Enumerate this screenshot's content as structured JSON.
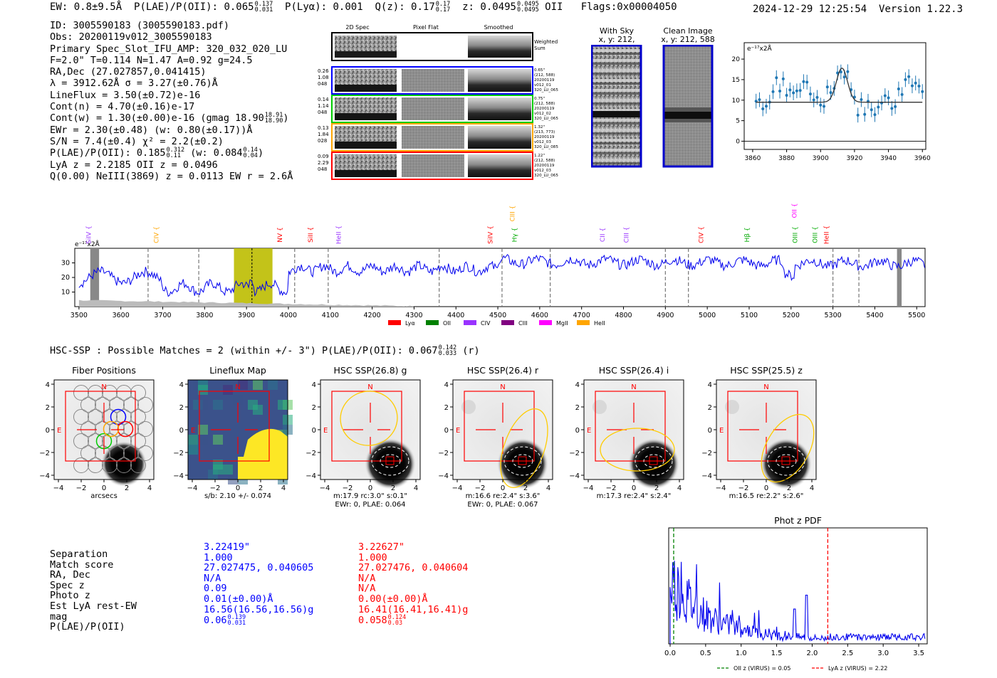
{
  "header": {
    "ew": "EW: 0.8±9.5Å",
    "plae_label": "P(LAE)/P(OII): 0.065",
    "plae_hi": "0.137",
    "plae_lo": "0.031",
    "plya": "P(Lyα): 0.001",
    "qz_label": "Q(z): 0.17",
    "qz_hi": "0.17",
    "qz_lo": "0.17",
    "z_label": "z: 0.0495",
    "z_hi": "0.0495",
    "z_lo": "0.0495",
    "z_line": "OII",
    "flags": "Flags:0x00004050",
    "timestamp": "2024-12-29 12:25:54",
    "version": "Version 1.22.3"
  },
  "info": {
    "id": "ID: 3005590183 (3005590183.pdf)",
    "obs": "Obs: 20200119v012_3005590183",
    "primary": "Primary Spec_Slot_IFU_AMP: 320_032_020_LU",
    "params": "F=2.0\"  T=0.114  N=1.47  A=0.92  g=24.5",
    "radec": "RA,Dec (27.027857,0.041415)",
    "lambda": "λ = 3912.62Å  σ = 3.27(±0.76)Å",
    "lineflux": "LineFlux = 3.50(±0.72)e-16",
    "contn": "Cont(n) = 4.70(±0.16)e-17",
    "contw": "Cont(w) = 1.30(±0.00)e-16 (gmag 18.90",
    "contw_hi": "18.91",
    "contw_lo": "18.90",
    "ewr": "EWr = 2.30(±0.48) (w: 0.80(±0.17))Å",
    "sn": "S/N = 7.4(±0.4)  χ² = 2.2(±0.2)",
    "plae": "P(LAE)/P(OII): 0.185",
    "plae_hi": "0.312",
    "plae_lo": "0.11",
    "plae_w": "(w: 0.084",
    "plae_w_hi": "0.14",
    "plae_w_lo": "0.04",
    "lya": "LyA z = 2.2185  OII z = 0.0496",
    "q": "Q(0.00) NeIII(3869) z = 0.0113  EW r = 2.6Å"
  },
  "cutouts": {
    "col_2d": "2D Spec",
    "col_flat": "Pixel Flat",
    "col_smooth": "Smoothed",
    "weighted": "Weighted Sum",
    "rows": [
      {
        "left": [
          "0.26",
          "1.08",
          "048"
        ],
        "right": [
          "0.65\"",
          "(212, 588)",
          "20200119",
          "v012_01",
          "320_LU_065"
        ],
        "color": "#0000ff"
      },
      {
        "left": [
          "0.14",
          "1.14",
          "048"
        ],
        "right": [
          "0.75\"",
          "(212, 588)",
          "20200119",
          "v012_02",
          "320_LU_065"
        ],
        "color": "#00cc00"
      },
      {
        "left": [
          "0.13",
          "1.84",
          "028"
        ],
        "right": [
          "1.32\"",
          "(213, 773)",
          "20200119",
          "v012_03",
          "320_LU_085"
        ],
        "color": "#ffa500"
      },
      {
        "left": [
          "0.09",
          "2.29",
          "048"
        ],
        "right": [
          "1.22\"",
          "(212, 588)",
          "20200119",
          "v012_03",
          "320_LU_065"
        ],
        "color": "#ff0000"
      }
    ]
  },
  "thumbs": {
    "sky_title": "With Sky",
    "sky_xy": "x, y: 212, 588",
    "clean_title": "Clean Image",
    "clean_xy": "x, y: 212, 588"
  },
  "zoom_plot": {
    "unit": "e⁻¹⁷x2Å",
    "x_ticks": [
      "3860",
      "3880",
      "3900",
      "3920",
      "3940",
      "3960"
    ],
    "y_ticks": [
      "0",
      "5",
      "10",
      "15",
      "20"
    ]
  },
  "full_spectrum": {
    "unit": "e⁻¹⁷x2Å",
    "x_ticks": [
      "3500",
      "3600",
      "3700",
      "3800",
      "3900",
      "4000",
      "4100",
      "4200",
      "4300",
      "4400",
      "4500",
      "4600",
      "4700",
      "4800",
      "4900",
      "5000",
      "5100",
      "5200",
      "5300",
      "5400",
      "5500"
    ],
    "y_ticks": [
      "10",
      "20",
      "30"
    ],
    "line_labels": [
      {
        "text": "SiIV",
        "color": "#9933ff"
      },
      {
        "text": "CIV",
        "color": "#ffa500"
      },
      {
        "text": "NV",
        "color": "#ff0000"
      },
      {
        "text": "SiII",
        "color": "#ff0000"
      },
      {
        "text": "HeII",
        "color": "#9933ff"
      },
      {
        "text": "SiIV",
        "color": "#ff0000"
      },
      {
        "text": "CIII",
        "color": "#ffa500"
      },
      {
        "text": "Hγ",
        "color": "#00aa00"
      },
      {
        "text": "CII",
        "color": "#9933ff"
      },
      {
        "text": "CIII",
        "color": "#9933ff"
      },
      {
        "text": "CIV",
        "color": "#ff0000"
      },
      {
        "text": "Hβ",
        "color": "#00aa00"
      },
      {
        "text": "OII",
        "color": "#ff00ff"
      },
      {
        "text": "OIII",
        "color": "#00aa00"
      },
      {
        "text": "OIII",
        "color": "#00aa00"
      },
      {
        "text": "HeII",
        "color": "#ff0000"
      }
    ],
    "legend": [
      {
        "label": "Lyα",
        "color": "#ff0000"
      },
      {
        "label": "OII",
        "color": "#008000"
      },
      {
        "label": "CIV",
        "color": "#9933ff"
      },
      {
        "label": "CIII",
        "color": "#800080"
      },
      {
        "label": "MgII",
        "color": "#ff00ff"
      },
      {
        "label": "HeII",
        "color": "#ffa500"
      }
    ]
  },
  "hsc_line": {
    "text": "HSC-SSP : Possible Matches = 2 (within +/- 3\")  P(LAE)/P(OII): 0.067",
    "hi": "0.142",
    "lo": "0.033",
    "band": "(r)"
  },
  "panels": [
    {
      "title": "Fiber Positions",
      "cap1": "arcsecs",
      "cap2": ""
    },
    {
      "title": "Lineflux Map",
      "cap1": "s/b: 2.10 +/- 0.074",
      "cap2": ""
    },
    {
      "title": "HSC SSP(26.8) g",
      "cap1": "m:17.9 rc:3.0\"  s:0.1\"",
      "cap2": "EWr: 0, PLAE: 0.064"
    },
    {
      "title": "HSC SSP(26.4) r",
      "cap1": "m:16.6  re:2.4\"  s:3.6\"",
      "cap2": "EWr: 0, PLAE: 0.067"
    },
    {
      "title": "HSC SSP(26.4) i",
      "cap1": "m:17.3  re:2.4\"  s:2.4\"",
      "cap2": ""
    },
    {
      "title": "HSC SSP(25.5) z",
      "cap1": "m:16.5  re:2.2\"  s:2.6\"",
      "cap2": ""
    }
  ],
  "panel_axis": {
    "x_ticks": [
      "−4",
      "−2",
      "0",
      "2",
      "4"
    ],
    "y_ticks": [
      "4",
      "2",
      "0",
      "−2",
      "−4"
    ],
    "north": "N",
    "east": "E"
  },
  "table": {
    "labels": [
      "Separation",
      "Match score",
      "RA, Dec",
      "Spec z",
      "Photo z",
      "Est LyA rest-EW",
      "mag",
      "P(LAE)/P(OII)"
    ],
    "col1": [
      "3.22419\"",
      "1.000",
      "27.027475, 0.040605",
      "N/A",
      "0.09",
      "0.01(±0.00)Å",
      "16.56(16.56,16.56)g",
      "0.06"
    ],
    "col1_frac": [
      "0.139",
      "0.031"
    ],
    "col2": [
      "3.22627\"",
      "1.000",
      "27.027476, 0.040604",
      "N/A",
      "N/A",
      "0.00(±0.00)Å",
      "16.41(16.41,16.41)g",
      "0.058"
    ],
    "col2_frac": [
      "0.124",
      "0.03"
    ]
  },
  "photz": {
    "title": "Phot z PDF",
    "x_ticks": [
      "0.0",
      "0.5",
      "1.0",
      "1.5",
      "2.0",
      "2.5",
      "3.0",
      "3.5"
    ],
    "legend_oii": "OII z (VIRUS) = 0.05",
    "legend_lya": "LyA z (VIRUS) = 2.22",
    "oii_z": 0.05,
    "lya_z": 2.22
  }
}
